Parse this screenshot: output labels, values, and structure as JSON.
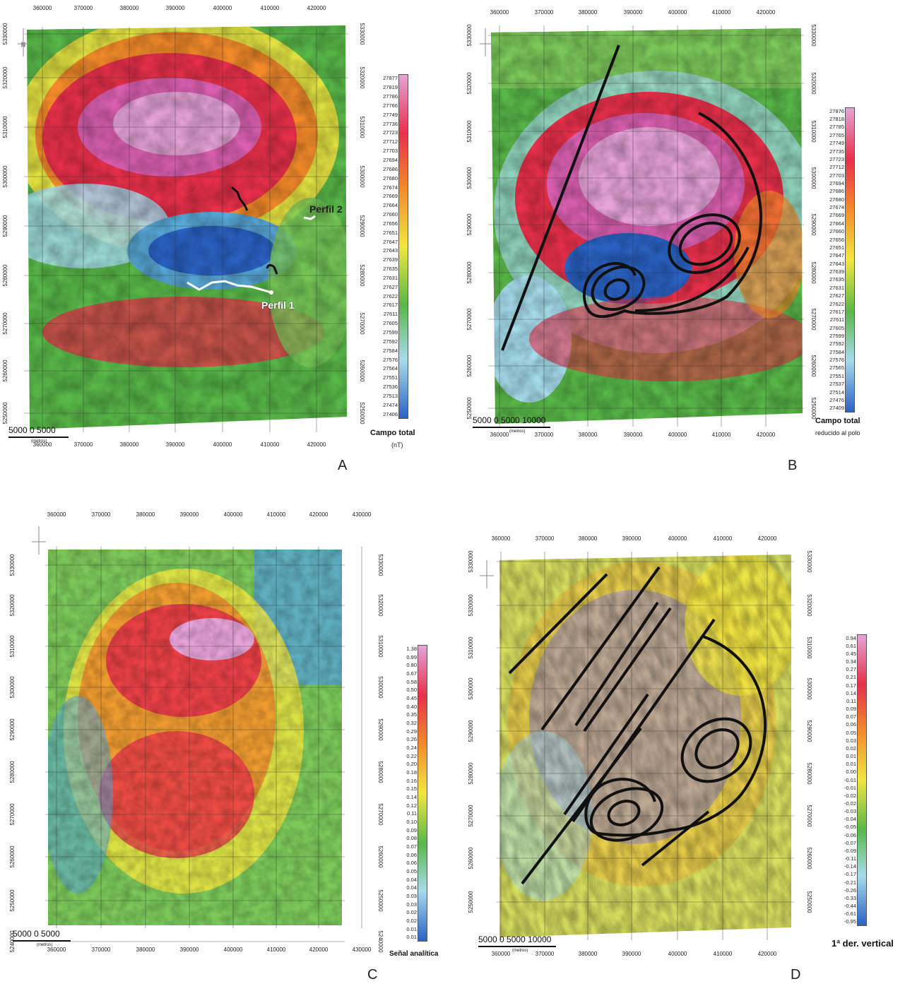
{
  "panels": [
    {
      "id": "A",
      "letter": "A",
      "x_ticks": [
        "360000",
        "370000",
        "380000",
        "390000",
        "400000",
        "410000",
        "420000"
      ],
      "y_ticks": [
        "5330000",
        "5320000",
        "5310000",
        "5300000",
        "5290000",
        "5280000",
        "5270000",
        "5260000",
        "5250000"
      ],
      "legend_title": "Campo total",
      "legend_sub": "(nT)",
      "legend_values": [
        "27877",
        "27819",
        "27786",
        "27766",
        "27749",
        "27736",
        "27723",
        "27712",
        "27703",
        "27694",
        "27686",
        "27680",
        "27674",
        "27669",
        "27664",
        "27660",
        "27656",
        "27651",
        "27647",
        "27643",
        "27639",
        "27635",
        "27631",
        "27627",
        "27622",
        "27617",
        "27611",
        "27605",
        "27599",
        "27592",
        "27584",
        "27576",
        "27564",
        "27551",
        "27536",
        "27513",
        "27474",
        "27406"
      ],
      "scale_text": "5000   0   5000",
      "scale_unit": "(metros)",
      "profiles": [
        {
          "label": "Perfil 1"
        },
        {
          "label": "Perfil 2"
        }
      ]
    },
    {
      "id": "B",
      "letter": "B",
      "x_ticks": [
        "360000",
        "370000",
        "380000",
        "390000",
        "400000",
        "410000",
        "420000"
      ],
      "y_ticks": [
        "5330000",
        "5320000",
        "5310000",
        "5300000",
        "5290000",
        "5280000",
        "5270000",
        "5260000",
        "5250000"
      ],
      "legend_title": "Campo total",
      "legend_sub": "reducido al polo",
      "legend_values": [
        "27876",
        "27818",
        "27785",
        "27765",
        "27749",
        "27735",
        "27723",
        "27712",
        "27703",
        "27694",
        "27686",
        "27680",
        "27674",
        "27669",
        "27664",
        "27660",
        "27656",
        "27651",
        "27647",
        "27643",
        "27639",
        "27635",
        "27631",
        "27627",
        "27622",
        "27617",
        "27611",
        "27605",
        "27599",
        "27592",
        "27584",
        "27576",
        "27565",
        "27551",
        "27537",
        "27514",
        "27476",
        "27409"
      ],
      "scale_text": "5000   0   5000 10000",
      "scale_unit": "(metros)"
    },
    {
      "id": "C",
      "letter": "C",
      "x_ticks": [
        "360000",
        "370000",
        "380000",
        "390000",
        "400000",
        "410000",
        "420000",
        "430000"
      ],
      "y_ticks": [
        "5330000",
        "5320000",
        "5310000",
        "5300000",
        "5290000",
        "5280000",
        "5270000",
        "5260000",
        "5250000",
        "5240000"
      ],
      "legend_title": "Señal analítica",
      "legend_sub": "",
      "legend_values": [
        "1.38",
        "0.99",
        "0.80",
        "0.67",
        "0.58",
        "0.50",
        "0.45",
        "0.40",
        "0.35",
        "0.32",
        "0.29",
        "0.26",
        "0.24",
        "0.22",
        "0.20",
        "0.18",
        "0.16",
        "0.15",
        "0.14",
        "0.12",
        "0.11",
        "0.10",
        "0.09",
        "0.08",
        "0.07",
        "0.06",
        "0.06",
        "0.05",
        "0.04",
        "0.04",
        "0.03",
        "0.03",
        "0.02",
        "0.02",
        "0.01",
        "0.01"
      ],
      "scale_text": "5000   0   5000",
      "scale_unit": "(metros)"
    },
    {
      "id": "D",
      "letter": "D",
      "x_ticks": [
        "360000",
        "370000",
        "380000",
        "390000",
        "400000",
        "410000",
        "420000"
      ],
      "y_ticks": [
        "5330000",
        "5320000",
        "5310000",
        "5300000",
        "5290000",
        "5280000",
        "5270000",
        "5260000",
        "5250000"
      ],
      "legend_title": "1ª der. vertical",
      "legend_sub": "",
      "legend_values": [
        "0.94",
        "0.61",
        "0.45",
        "0.34",
        "0.27",
        "0.21",
        "0.17",
        "0.14",
        "0.11",
        "0.09",
        "0.07",
        "0.06",
        "0.05",
        "0.03",
        "0.02",
        "0.01",
        "0.01",
        "0.00",
        "-0.01",
        "-0.01",
        "-0.02",
        "-0.02",
        "-0.03",
        "-0.04",
        "-0.05",
        "-0.06",
        "-0.07",
        "-0.09",
        "-0.11",
        "-0.14",
        "-0.17",
        "-0.21",
        "-0.26",
        "-0.33",
        "-0.44",
        "-0.61",
        "-0.95"
      ],
      "scale_text": "5000   0   5000 10000",
      "scale_unit": "(metros)"
    }
  ],
  "colors": {
    "ramp_high": "#e6a3d8",
    "ramp_red": "#e8304a",
    "ramp_orange": "#f28a2a",
    "ramp_yellow": "#f2e640",
    "ramp_green": "#58b848",
    "ramp_cyan": "#a6dcec",
    "ramp_blue": "#2a62c4",
    "interpretation_lines": "#111111",
    "profile_lines": "#ffffff"
  }
}
